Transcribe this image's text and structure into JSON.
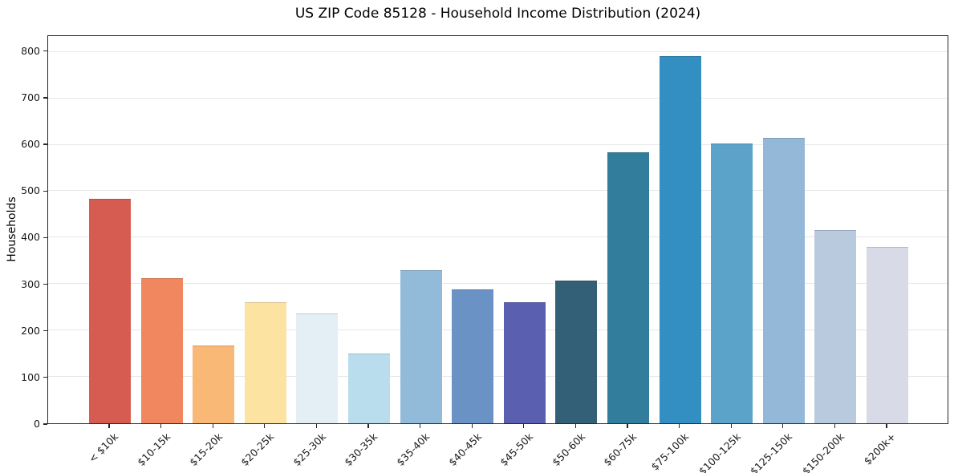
{
  "chart_data": {
    "type": "bar",
    "title": "US ZIP Code 85128 - Household Income Distribution (2024)",
    "xlabel": "",
    "ylabel": "Households",
    "categories": [
      "< $10k",
      "$10-15k",
      "$15-20k",
      "$20-25k",
      "$25-30k",
      "$30-35k",
      "$35-40k",
      "$40-45k",
      "$45-50k",
      "$50-60k",
      "$60-75k",
      "$75-100k",
      "$100-125k",
      "$125-150k",
      "$150-200k",
      "$200k+"
    ],
    "values": [
      483,
      312,
      168,
      260,
      236,
      151,
      330,
      289,
      261,
      307,
      583,
      790,
      602,
      615,
      416,
      380
    ],
    "bar_colors": [
      "#d65c51",
      "#f0875f",
      "#f9b876",
      "#fde3a1",
      "#e4eff5",
      "#b9ddec",
      "#92bbd9",
      "#6b92c4",
      "#5a5fb0",
      "#336076",
      "#337d9c",
      "#338fc2",
      "#5ba3c9",
      "#93b8d8",
      "#b9c9de",
      "#d8dae8"
    ],
    "ylim": [
      0,
      834
    ],
    "yticks": [
      0,
      100,
      200,
      300,
      400,
      500,
      600,
      700,
      800
    ],
    "grid": "horizontal",
    "legend": "none",
    "x_tick_rotation": -45
  }
}
